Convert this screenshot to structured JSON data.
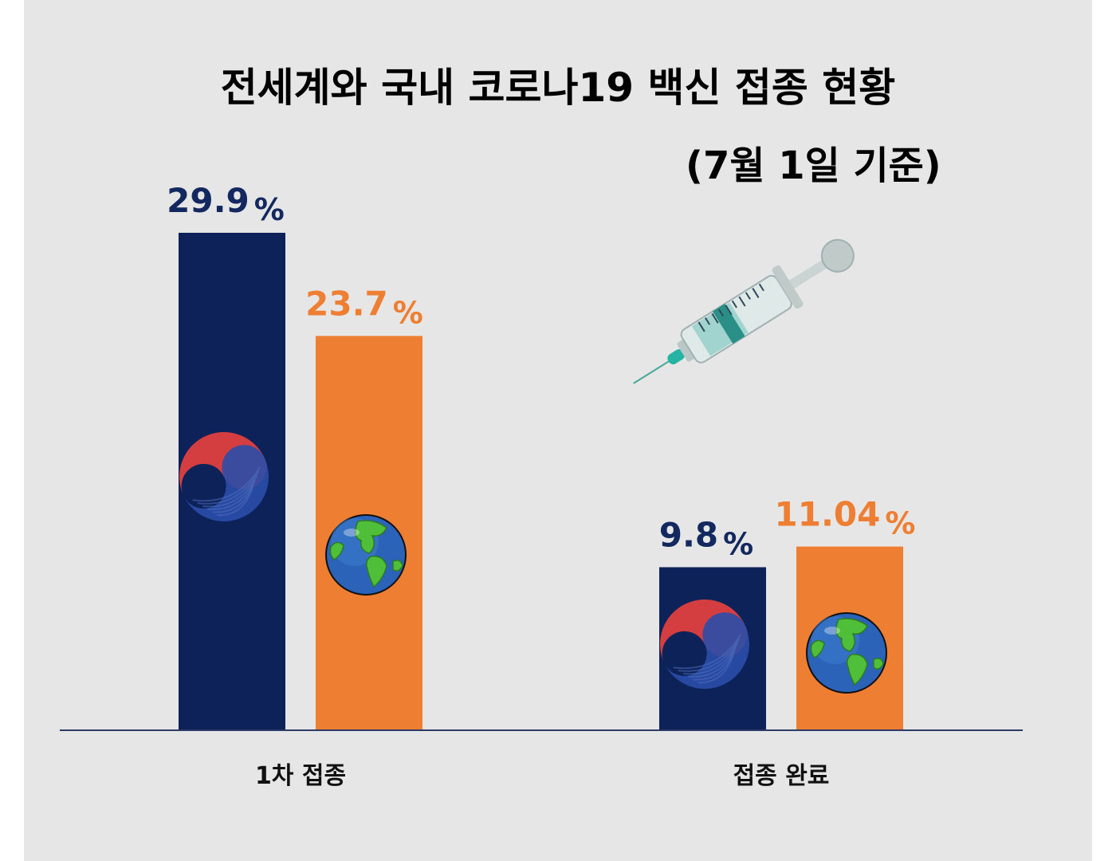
{
  "title": "전세계와 국내 코로나19 백신 접종 현황",
  "subtitle": "(7월 1일 기준)",
  "colors": {
    "korea": "#0d2259",
    "world": "#ee7e32",
    "background": "#e6e6e6"
  },
  "chart_data": {
    "type": "bar",
    "categories": [
      "1차 접종",
      "접종 완료"
    ],
    "series": [
      {
        "values": [
          29.9,
          9.8
        ],
        "labels": [
          "29.9",
          "9.8"
        ],
        "icon": "korea-taegeuk-icon",
        "color": "#0d2259"
      },
      {
        "values": [
          23.7,
          11.04
        ],
        "labels": [
          "23.7",
          "11.04"
        ],
        "icon": "globe-icon",
        "color": "#ee7e32"
      }
    ],
    "unit": "%",
    "ylim": [
      0,
      29.9
    ],
    "grid": false,
    "legend": "none"
  },
  "decorations": {
    "syringe": "syringe-icon"
  }
}
